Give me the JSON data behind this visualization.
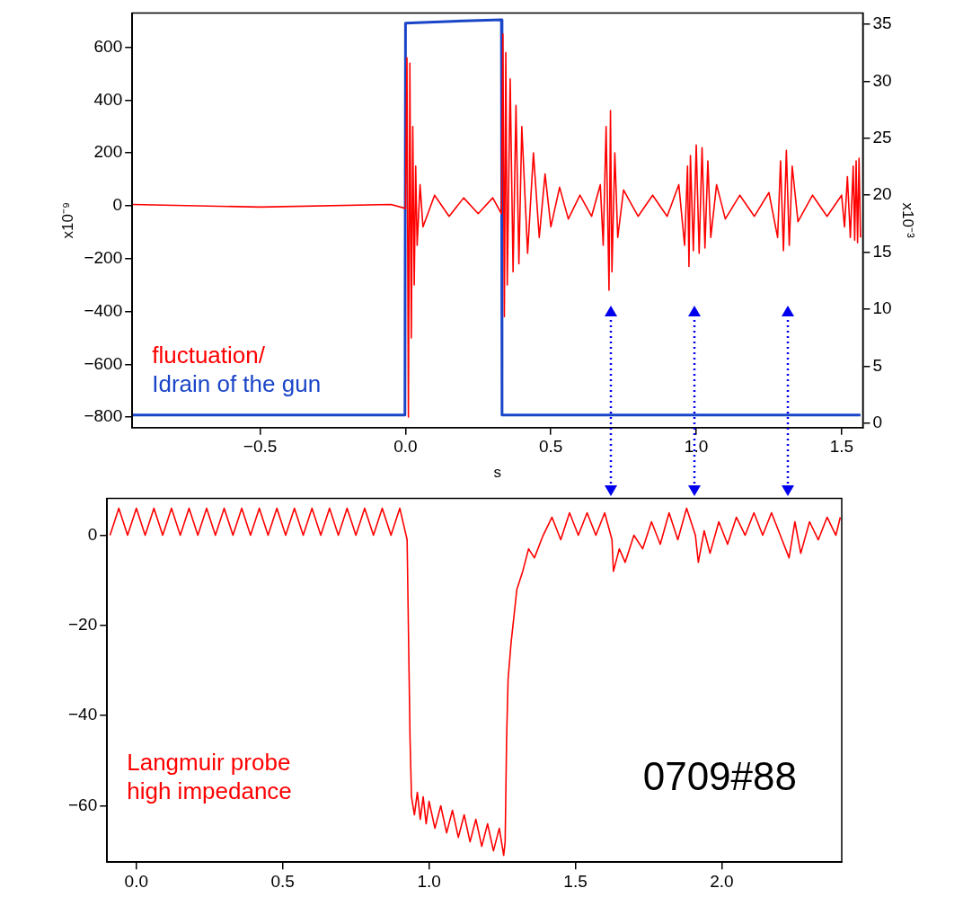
{
  "chart_data": [
    {
      "type": "line",
      "xlabel": "s",
      "ylabel": "x10⁻⁹",
      "y2label": "x10⁻³",
      "xlim": [
        -0.94,
        1.573
      ],
      "xticks": [
        {
          "value": -0.5,
          "label": "−0.5"
        },
        {
          "value": 0,
          "label": "0.0"
        },
        {
          "value": 0.5,
          "label": "0.5"
        },
        {
          "value": 1,
          "label": "1.0"
        },
        {
          "value": 1.5,
          "label": "1.5"
        }
      ],
      "ylim": [
        -840,
        730
      ],
      "yticks": [
        {
          "value": -800,
          "label": "−800"
        },
        {
          "value": -600,
          "label": "−600"
        },
        {
          "value": -400,
          "label": "−400"
        },
        {
          "value": -200,
          "label": "−200"
        },
        0,
        200,
        400,
        600
      ],
      "y2lim": [
        -0.4,
        36
      ],
      "y2ticks": [
        0,
        5,
        10,
        15,
        20,
        25,
        30,
        35
      ],
      "grid": false,
      "legend": "bottom left",
      "marker": "none",
      "series": [
        {
          "name": "fluctuation/",
          "color": "#ff0000",
          "x": [
            -0.94,
            -0.5,
            -0.05,
            0,
            0.005,
            0.01,
            0.015,
            0.02,
            0.025,
            0.03,
            0.035,
            0.04,
            0.05,
            0.06,
            0.1,
            0.15,
            0.2,
            0.25,
            0.3,
            0.33,
            0.335,
            0.34,
            0.345,
            0.35,
            0.36,
            0.37,
            0.38,
            0.39,
            0.4,
            0.42,
            0.44,
            0.46,
            0.48,
            0.5,
            0.53,
            0.56,
            0.6,
            0.64,
            0.67,
            0.68,
            0.69,
            0.7,
            0.705,
            0.71,
            0.72,
            0.73,
            0.75,
            0.8,
            0.85,
            0.9,
            0.94,
            0.96,
            0.97,
            0.975,
            0.98,
            0.99,
            1.0,
            1.01,
            1.02,
            1.03,
            1.04,
            1.05,
            1.07,
            1.1,
            1.15,
            1.2,
            1.25,
            1.28,
            1.29,
            1.3,
            1.31,
            1.32,
            1.33,
            1.35,
            1.4,
            1.45,
            1.5,
            1.51,
            1.52,
            1.53,
            1.54,
            1.545,
            1.55,
            1.555,
            1.56,
            1.565
          ],
          "values": [
            5,
            -5,
            5,
            -10,
            560,
            -800,
            540,
            -500,
            300,
            -300,
            150,
            -150,
            80,
            -80,
            40,
            -40,
            30,
            -30,
            30,
            -30,
            650,
            -420,
            580,
            -300,
            480,
            -250,
            380,
            -220,
            300,
            -180,
            200,
            -120,
            120,
            -80,
            70,
            -50,
            40,
            -40,
            80,
            -150,
            300,
            -320,
            360,
            -250,
            200,
            -120,
            60,
            -40,
            40,
            -40,
            80,
            -150,
            150,
            -230,
            190,
            -170,
            230,
            -180,
            220,
            -160,
            170,
            -120,
            80,
            -50,
            40,
            -40,
            50,
            -120,
            170,
            -170,
            210,
            -150,
            150,
            -60,
            40,
            -40,
            40,
            -80,
            110,
            -120,
            150,
            -130,
            170,
            -140,
            180,
            -120
          ]
        },
        {
          "name": "Idrain of the gun",
          "color": "#1a45c8",
          "axis": "y2",
          "x": [
            -0.94,
            -0.002,
            0,
            0.1,
            0.2,
            0.33,
            0.332,
            1.0,
            1.565
          ],
          "values": [
            0.7,
            0.7,
            35.1,
            35.2,
            35.3,
            35.4,
            0.7,
            0.7,
            0.7
          ]
        }
      ]
    },
    {
      "type": "line",
      "xlim": [
        -0.1,
        2.41
      ],
      "xticks": [
        {
          "value": 0,
          "label": "0.0"
        },
        {
          "value": 0.5,
          "label": "0.5"
        },
        {
          "value": 1,
          "label": "1.0"
        },
        {
          "value": 1.5,
          "label": "1.5"
        },
        {
          "value": 2,
          "label": "2.0"
        }
      ],
      "ylim": [
        -72.5,
        8.2
      ],
      "yticks": [
        {
          "value": -60,
          "label": "−60"
        },
        {
          "value": -40,
          "label": "−40"
        },
        {
          "value": -20,
          "label": "−20"
        },
        0
      ],
      "grid": false,
      "legend": "bottom left",
      "marker": "none",
      "annotations": [
        "0709#88"
      ],
      "series": [
        {
          "name": "Langmuir probe high impedance",
          "color": "#ff0000",
          "x": [
            -0.09,
            -0.06,
            -0.03,
            0,
            0.03,
            0.06,
            0.09,
            0.12,
            0.15,
            0.18,
            0.21,
            0.24,
            0.27,
            0.3,
            0.33,
            0.36,
            0.39,
            0.42,
            0.45,
            0.48,
            0.51,
            0.54,
            0.57,
            0.6,
            0.63,
            0.66,
            0.69,
            0.72,
            0.75,
            0.78,
            0.81,
            0.84,
            0.87,
            0.9,
            0.925,
            0.935,
            0.94,
            0.95,
            0.96,
            0.97,
            0.98,
            0.99,
            1.0,
            1.02,
            1.04,
            1.06,
            1.08,
            1.1,
            1.12,
            1.14,
            1.16,
            1.18,
            1.2,
            1.22,
            1.24,
            1.255,
            1.26,
            1.265,
            1.27,
            1.28,
            1.29,
            1.3,
            1.32,
            1.34,
            1.36,
            1.39,
            1.42,
            1.45,
            1.48,
            1.51,
            1.54,
            1.57,
            1.6,
            1.625,
            1.63,
            1.65,
            1.67,
            1.7,
            1.73,
            1.76,
            1.79,
            1.82,
            1.85,
            1.88,
            1.91,
            1.92,
            1.94,
            1.96,
            1.99,
            2.02,
            2.05,
            2.08,
            2.11,
            2.14,
            2.17,
            2.2,
            2.23,
            2.25,
            2.27,
            2.3,
            2.33,
            2.36,
            2.39,
            2.405
          ],
          "values": [
            0,
            6,
            0,
            6,
            0,
            6,
            0,
            6,
            0,
            6,
            0,
            6,
            0,
            6,
            0,
            6,
            0,
            6,
            0,
            6,
            0,
            6,
            0,
            6,
            0,
            6,
            0,
            6,
            0,
            6,
            0,
            6,
            0,
            6,
            -1,
            -45,
            -58,
            -62,
            -57,
            -63,
            -58,
            -64,
            -59,
            -65,
            -60,
            -66,
            -61,
            -67,
            -62,
            -68,
            -63,
            -69,
            -64,
            -70,
            -65,
            -71,
            -68,
            -45,
            -32,
            -24,
            -18,
            -12,
            -8,
            -3,
            -5,
            0,
            4,
            -1,
            5,
            0,
            5,
            0,
            5,
            -1,
            -8,
            -3,
            -6,
            0,
            -3,
            3,
            -2,
            5,
            -1,
            6,
            0,
            -6,
            1,
            -4,
            3,
            -2,
            4,
            0,
            5,
            0,
            5,
            0,
            -5,
            3,
            -4,
            3,
            -1,
            4,
            0,
            4
          ]
        }
      ]
    }
  ]
}
